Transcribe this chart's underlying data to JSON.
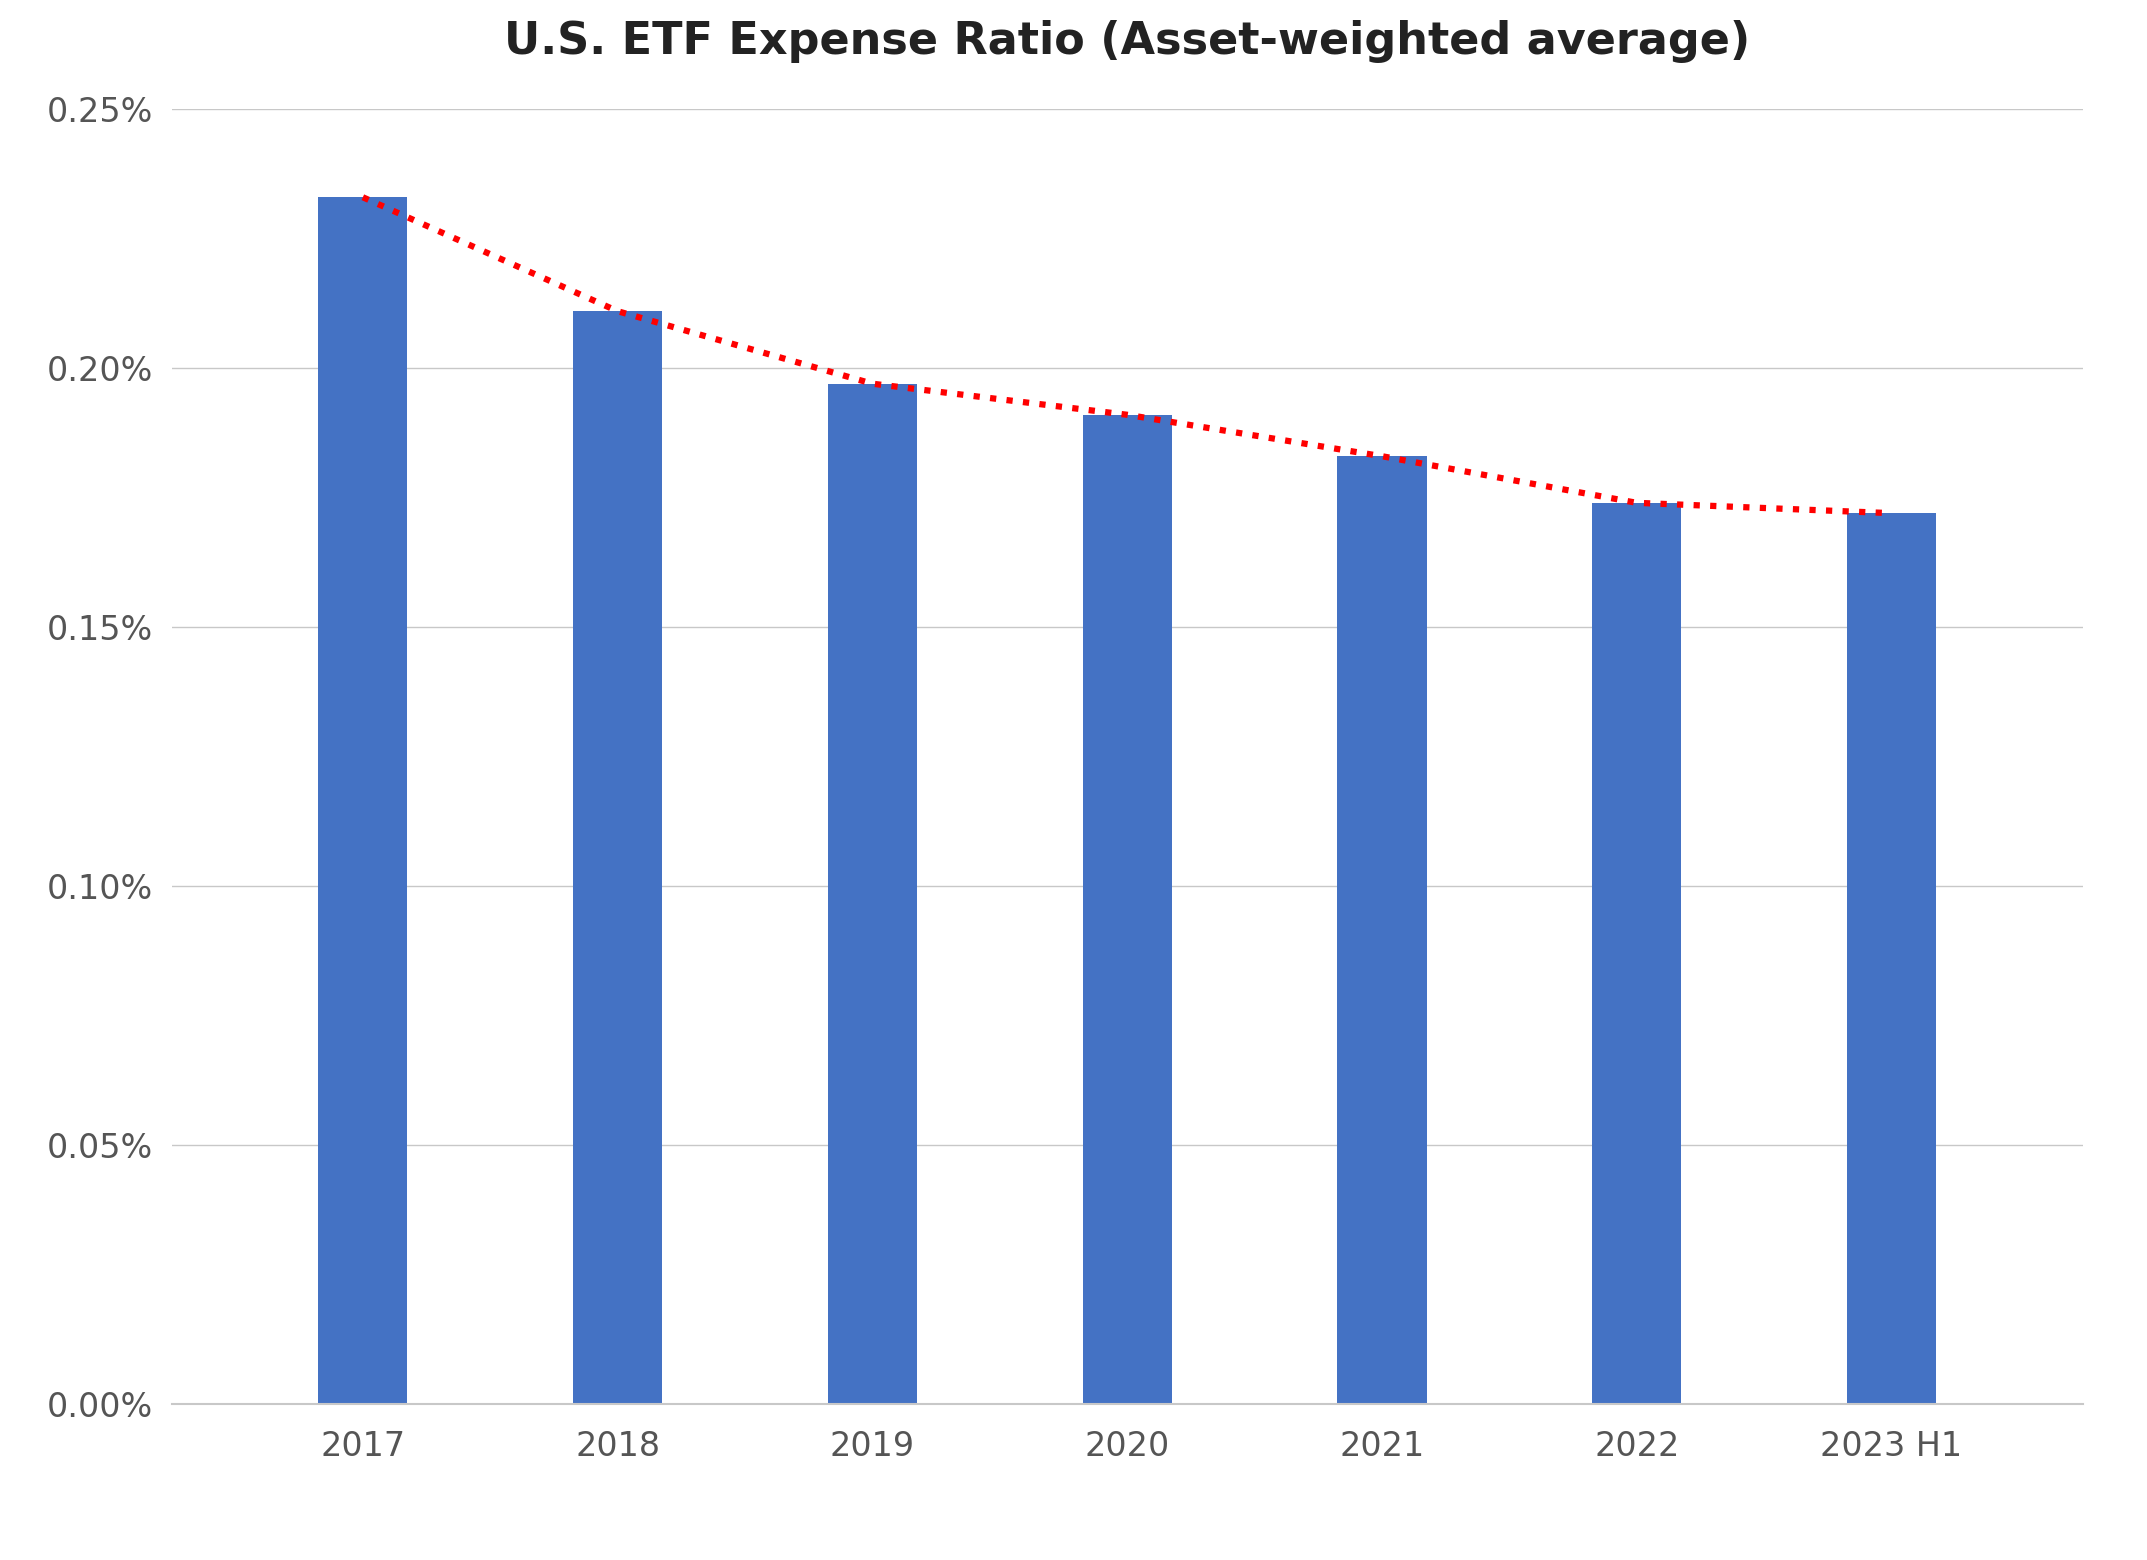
{
  "title": "U.S. ETF Expense Ratio (Asset-weighted average)",
  "categories": [
    "2017",
    "2018",
    "2019",
    "2020",
    "2021",
    "2022",
    "2023 H1"
  ],
  "values": [
    0.00233,
    0.00211,
    0.00197,
    0.00191,
    0.00183,
    0.00174,
    0.00172
  ],
  "bar_color": "#4472C4",
  "trend_color": "#FF0000",
  "ylim": [
    0,
    0.0025
  ],
  "yticks": [
    0.0,
    0.0005,
    0.001,
    0.0015,
    0.002,
    0.0025
  ],
  "ytick_labels": [
    "0.00%",
    "0.05%",
    "0.10%",
    "0.15%",
    "0.20%",
    "0.25%"
  ],
  "background_color": "#FFFFFF",
  "grid_color": "#C8C8C8",
  "title_fontsize": 32,
  "tick_fontsize": 24,
  "bar_width": 0.35
}
